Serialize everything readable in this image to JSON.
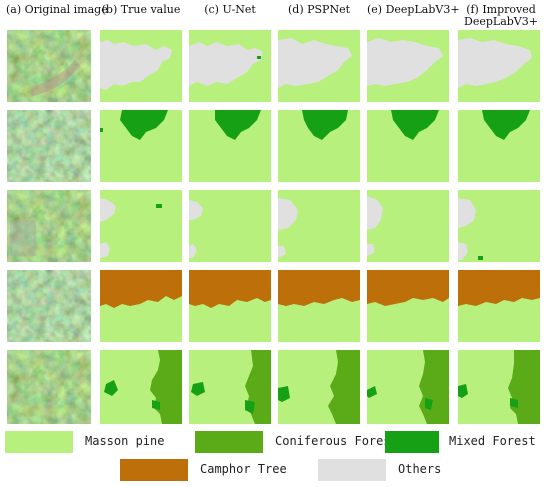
{
  "headers": [
    "(a) Original image",
    "(b) True value",
    "(c) U-Net",
    "(d) PSPNet",
    "(e) DeepLabV3+",
    "(f) Improved DeepLabV3+"
  ],
  "header_f_lines": [
    "(f) Improved",
    "DeepLabV3+"
  ],
  "colors": {
    "masson_pine": "#b7f07c",
    "coniferous_forest": "#5aab17",
    "mixed_forest": "#16a016",
    "camphor_tree": "#bd6f0a",
    "others": "#e0e0e0",
    "background": "#ffffff"
  },
  "legend": [
    {
      "label": "Masson pine",
      "color_key": "masson_pine"
    },
    {
      "label": "Coniferous Forest",
      "color_key": "coniferous_forest"
    },
    {
      "label": "Mixed Forest",
      "color_key": "mixed_forest"
    },
    {
      "label": "Camphor Tree",
      "color_key": "camphor_tree"
    },
    {
      "label": "Others",
      "color_key": "others"
    }
  ],
  "rows": [
    {
      "row_index": 1,
      "base_class": "masson_pine",
      "regions": [
        "others"
      ]
    },
    {
      "row_index": 2,
      "base_class": "masson_pine",
      "regions": [
        "mixed_forest"
      ]
    },
    {
      "row_index": 3,
      "base_class": "masson_pine",
      "regions": [
        "others"
      ]
    },
    {
      "row_index": 4,
      "base_class": "masson_pine",
      "regions": [
        "camphor_tree"
      ]
    },
    {
      "row_index": 5,
      "base_class": "masson_pine",
      "regions": [
        "coniferous_forest"
      ]
    }
  ]
}
